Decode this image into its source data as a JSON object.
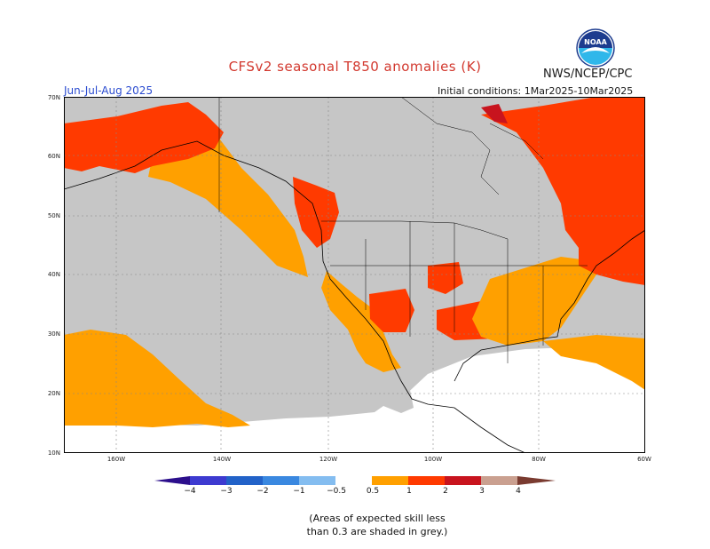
{
  "header": {
    "title": "CFSv2 seasonal T850 anomalies (K)",
    "agency": "NWS/NCEP/CPC",
    "season": "Jun-Jul-Aug 2025",
    "initial_conditions": "Initial conditions: 1Mar2025-10Mar2025"
  },
  "axes": {
    "lat_labels": [
      "70N",
      "60N",
      "50N",
      "40N",
      "30N",
      "20N",
      "10N"
    ],
    "lon_labels": [
      "160W",
      "140W",
      "120W",
      "100W",
      "80W",
      "60W"
    ]
  },
  "legend": {
    "ticks": [
      "−4",
      "−3",
      "−2",
      "−1",
      "−0.5",
      "0.5",
      "1",
      "2",
      "3",
      "4"
    ],
    "colors": {
      "lt_-4": "#2c0f8c",
      "-4_-3": "#3d3ad0",
      "-3_-2": "#2262c8",
      "-2_-1": "#3a88e0",
      "-1_-0.5": "#84bdf0",
      "neutral": "#ffffff",
      "0.5_1": "#ffa000",
      "1_2": "#ff3a00",
      "2_3": "#c8141e",
      "3_4": "#caa090",
      "gt_4": "#7a3b30"
    },
    "note_line1": "(Areas of expected skill less",
    "note_line2": "than 0.3 are shaded in grey.)"
  },
  "logo": {
    "text": "NOAA",
    "icon": "noaa-logo-icon"
  },
  "map_colors": {
    "low_skill": "#c6c6c6",
    "ocean_white": "#ffffff",
    "border": "#000000"
  }
}
